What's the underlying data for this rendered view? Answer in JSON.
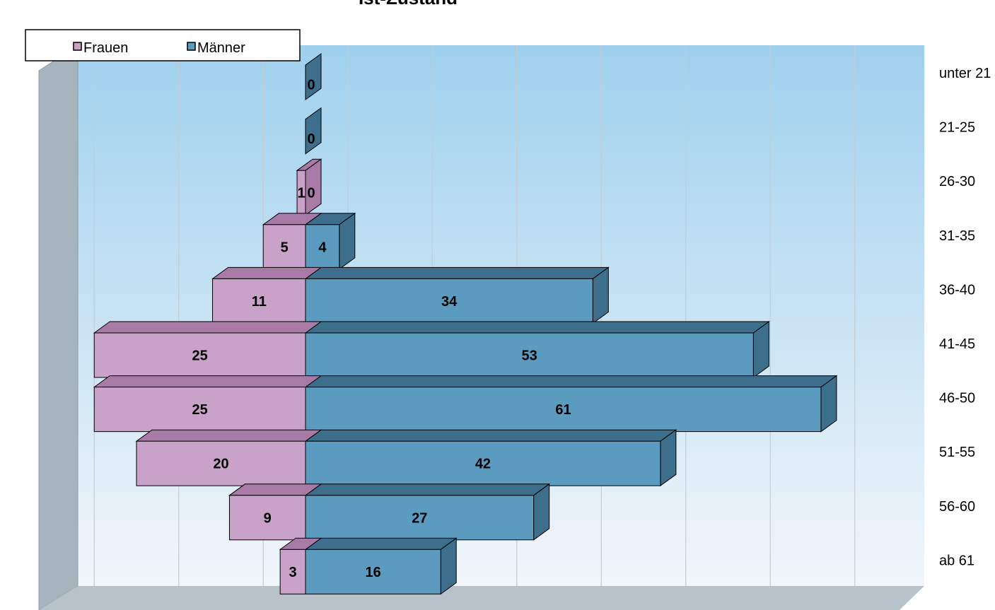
{
  "chart_data": {
    "type": "bar",
    "orientation": "horizontal",
    "stacked": "diverging",
    "title": "Ist-Zustand",
    "categories": [
      "unter 21",
      "21-25",
      "26-30",
      "31-35",
      "36-40",
      "41-45",
      "46-50",
      "51-55",
      "56-60",
      "ab 61"
    ],
    "series": [
      {
        "name": "Frauen",
        "values": [
          0,
          0,
          1,
          5,
          11,
          25,
          25,
          20,
          9,
          3
        ],
        "color": "#c8a2c8"
      },
      {
        "name": "Männer",
        "values": [
          0,
          0,
          0,
          4,
          34,
          53,
          61,
          42,
          27,
          16
        ],
        "color": "#5b9bc0"
      }
    ],
    "value_labels": [
      {
        "frauen": "",
        "maenner": "0"
      },
      {
        "frauen": "",
        "maenner": "0"
      },
      {
        "frauen": "1",
        "maenner": "0"
      },
      {
        "frauen": "5",
        "maenner": "4"
      },
      {
        "frauen": "11",
        "maenner": "34"
      },
      {
        "frauen": "25",
        "maenner": "53"
      },
      {
        "frauen": "25",
        "maenner": "61"
      },
      {
        "frauen": "20",
        "maenner": "42"
      },
      {
        "frauen": "9",
        "maenner": "27"
      },
      {
        "frauen": "3",
        "maenner": "16"
      }
    ],
    "legend": {
      "position": "top-left",
      "entries": [
        "Frauen",
        "Männer"
      ]
    },
    "grid": true,
    "three_d": true,
    "category_axis_position": "right",
    "colors": {
      "frauen": "#c8a2c8",
      "frauen_top": "#a87aa6",
      "maenner": "#5b9bc0",
      "maenner_side": "#3d6e8c",
      "backwall_top": "#9fd0ee",
      "backwall_bottom": "#f2f6fa",
      "sidewall": "#a6b4bd",
      "floor": "#b8c2ca"
    }
  }
}
